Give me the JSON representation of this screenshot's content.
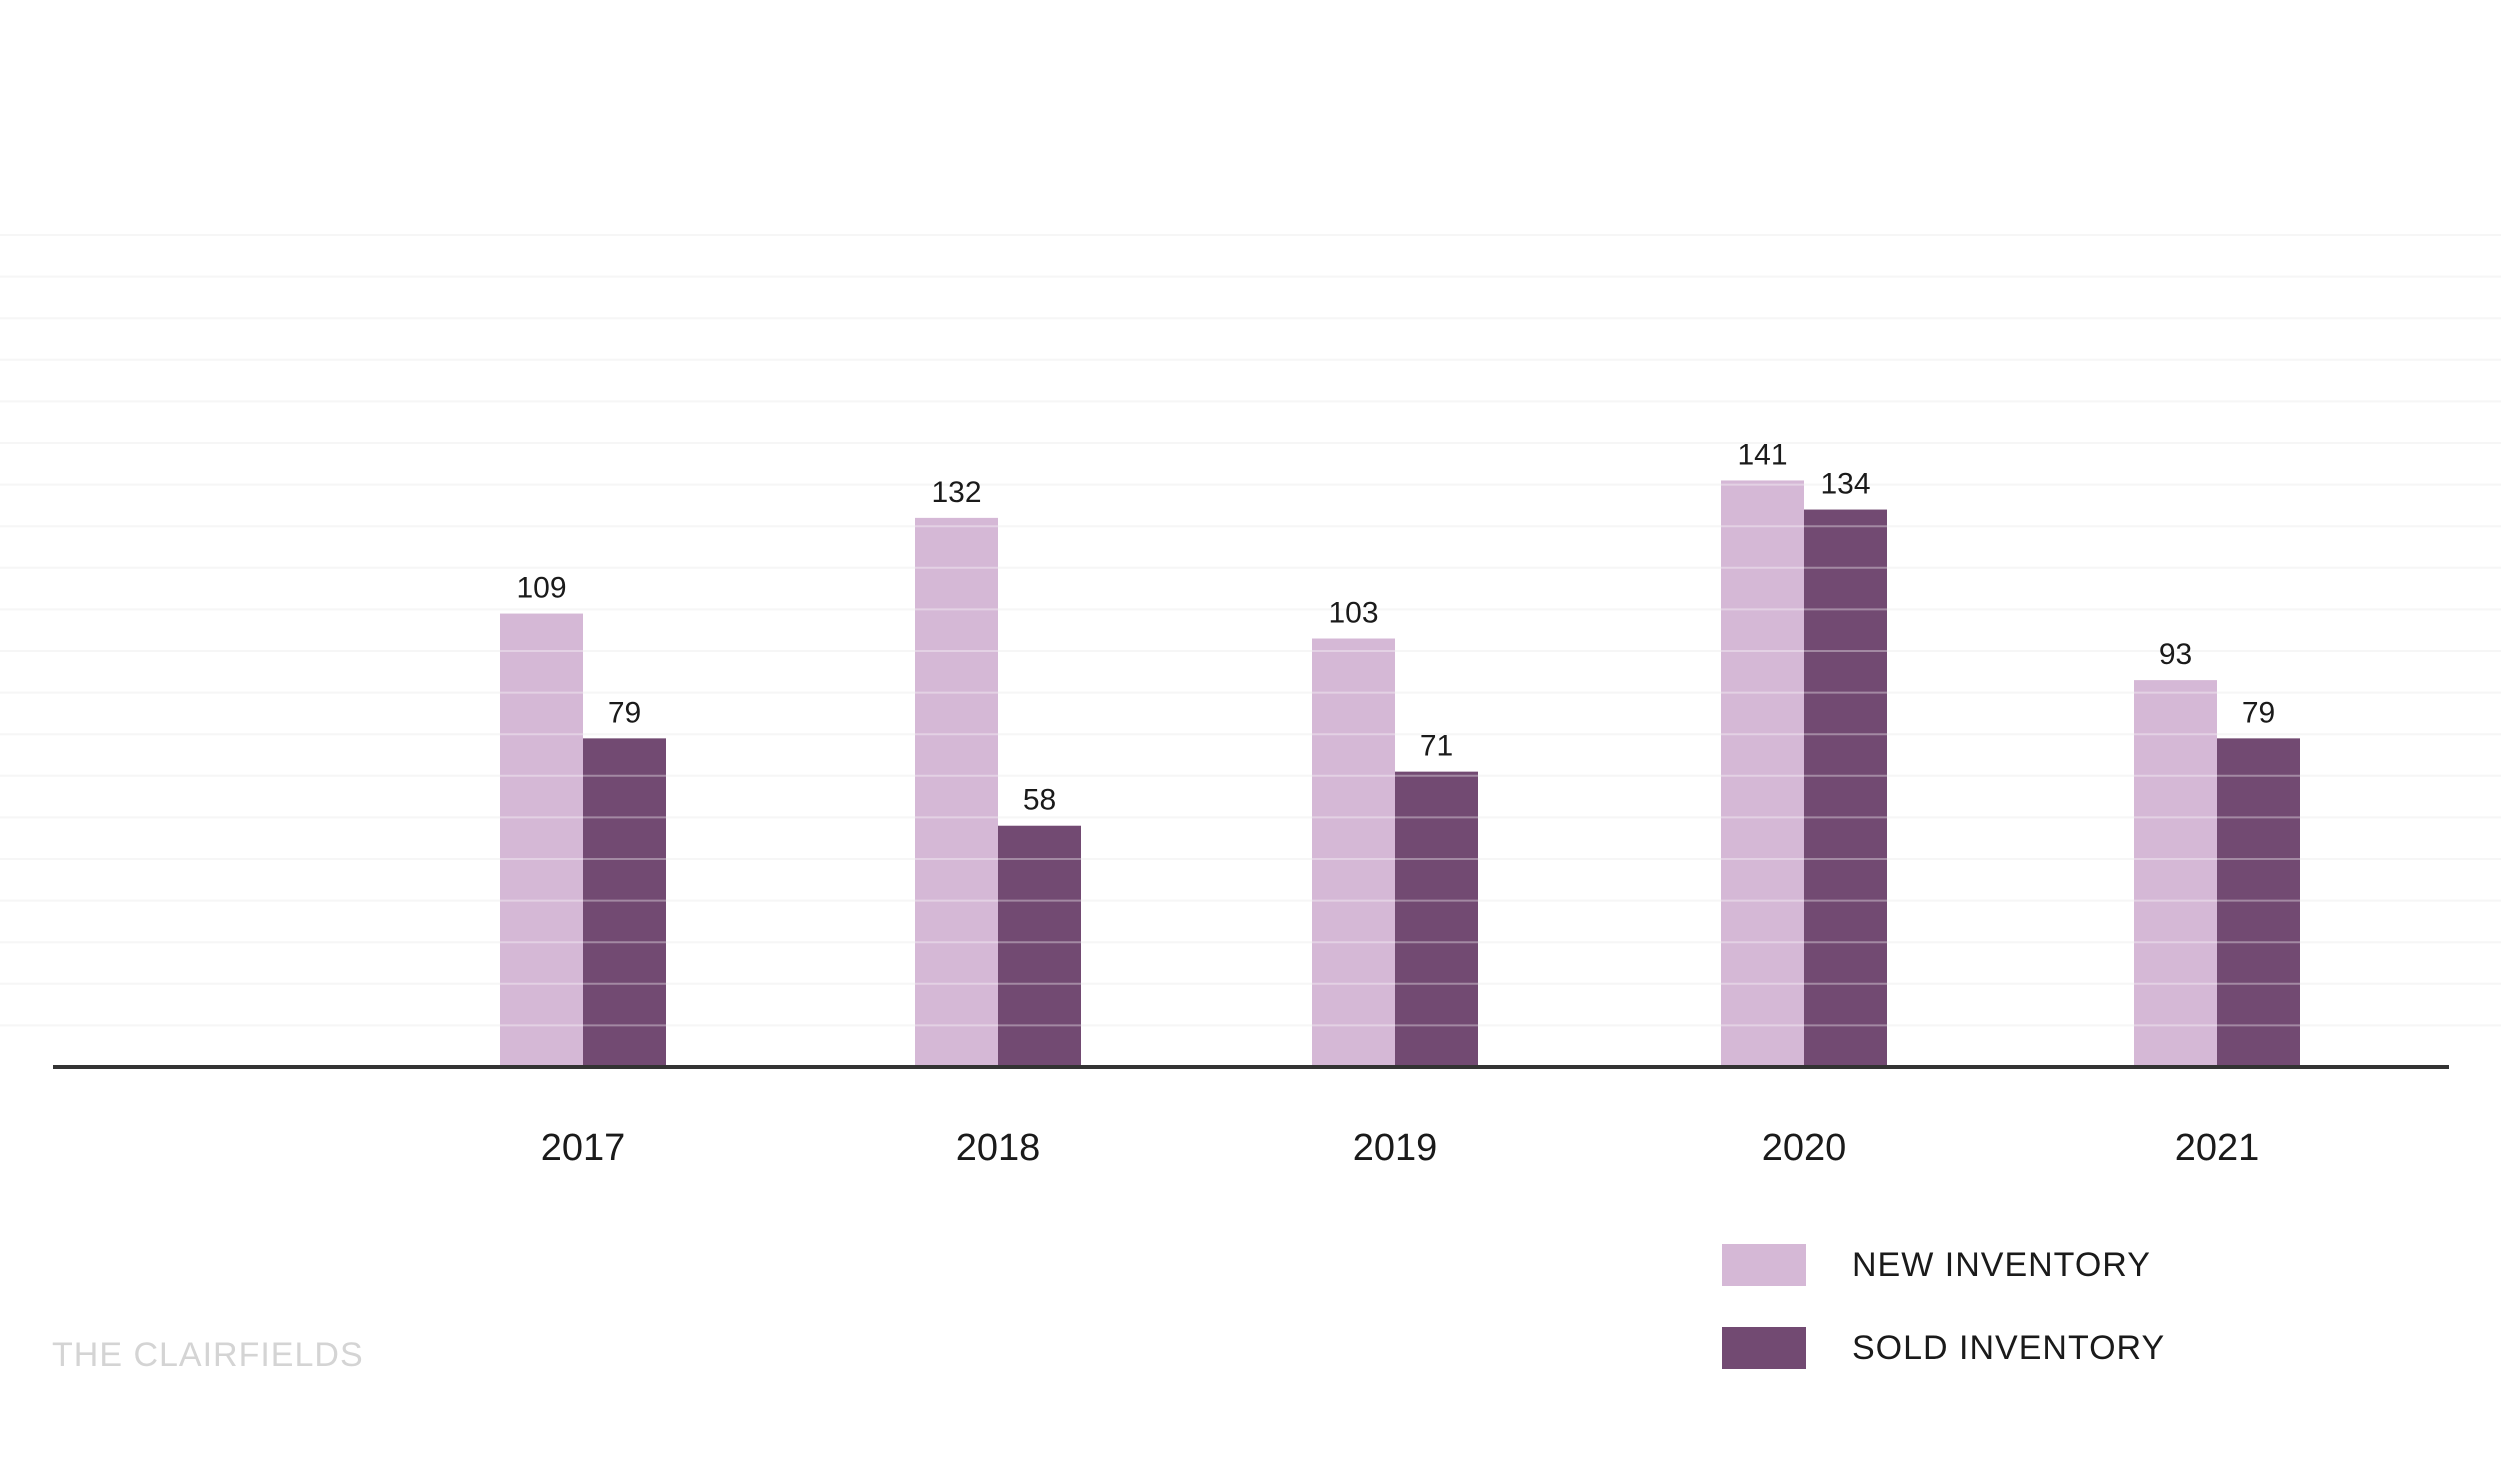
{
  "chart_data": {
    "type": "bar",
    "categories": [
      "2017",
      "2018",
      "2019",
      "2020",
      "2021"
    ],
    "series": [
      {
        "name": "NEW INVENTORY",
        "values": [
          109,
          132,
          103,
          141,
          93
        ],
        "color": "#d5b8d6"
      },
      {
        "name": "SOLD INVENTORY",
        "values": [
          79,
          58,
          71,
          134,
          79
        ],
        "color": "#724a72"
      }
    ],
    "ylim": [
      0,
      200
    ],
    "grid": true,
    "legend_position": "bottom-right",
    "title": "",
    "xlabel": "",
    "ylabel": ""
  },
  "watermark": "THE CLAIRFIELDS"
}
